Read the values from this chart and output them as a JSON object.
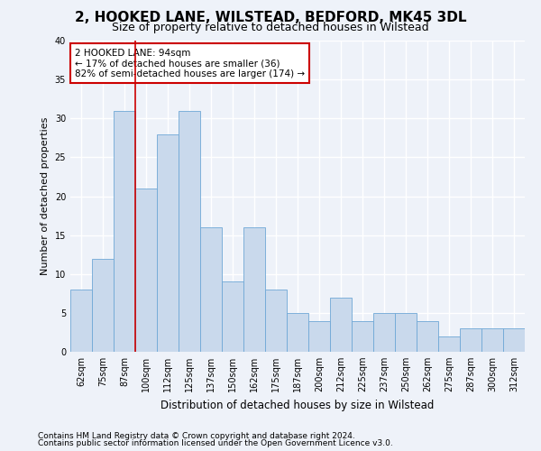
{
  "title1": "2, HOOKED LANE, WILSTEAD, BEDFORD, MK45 3DL",
  "title2": "Size of property relative to detached houses in Wilstead",
  "xlabel": "Distribution of detached houses by size in Wilstead",
  "ylabel": "Number of detached properties",
  "categories": [
    "62sqm",
    "75sqm",
    "87sqm",
    "100sqm",
    "112sqm",
    "125sqm",
    "137sqm",
    "150sqm",
    "162sqm",
    "175sqm",
    "187sqm",
    "200sqm",
    "212sqm",
    "225sqm",
    "237sqm",
    "250sqm",
    "262sqm",
    "275sqm",
    "287sqm",
    "300sqm",
    "312sqm"
  ],
  "values": [
    8,
    12,
    31,
    21,
    28,
    31,
    16,
    9,
    16,
    8,
    5,
    4,
    7,
    4,
    5,
    5,
    4,
    2,
    3,
    3,
    3
  ],
  "bar_color": "#c9d9ec",
  "bar_edge_color": "#6fa8d6",
  "annotation_text": "2 HOOKED LANE: 94sqm\n← 17% of detached houses are smaller (36)\n82% of semi-detached houses are larger (174) →",
  "annotation_box_color": "#ffffff",
  "annotation_box_edge_color": "#cc0000",
  "ylim": [
    0,
    40
  ],
  "yticks": [
    0,
    5,
    10,
    15,
    20,
    25,
    30,
    35,
    40
  ],
  "footer1": "Contains HM Land Registry data © Crown copyright and database right 2024.",
  "footer2": "Contains public sector information licensed under the Open Government Licence v3.0.",
  "background_color": "#eef2f9",
  "plot_bg_color": "#eef2f9",
  "grid_color": "#ffffff",
  "vline_color": "#cc0000",
  "title1_fontsize": 11,
  "title2_fontsize": 9,
  "xlabel_fontsize": 8.5,
  "ylabel_fontsize": 8,
  "tick_fontsize": 7,
  "annotation_fontsize": 7.5,
  "footer_fontsize": 6.5
}
